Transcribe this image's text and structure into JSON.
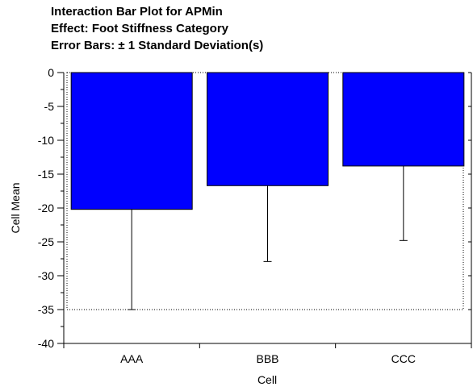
{
  "chart_data": {
    "type": "bar",
    "title_lines": [
      "Interaction Bar Plot for APMin",
      "Effect: Foot Stiffness Category",
      "Error Bars: ± 1 Standard Deviation(s)"
    ],
    "categories": [
      "AAA",
      "BBB",
      "CCC"
    ],
    "values": [
      -20.2,
      -16.7,
      -13.8
    ],
    "error_bars": {
      "type": "standard deviation",
      "multiplier": 1,
      "values": [
        14.8,
        11.2,
        11.0
      ]
    },
    "xlabel": "Cell",
    "ylabel": "Cell Mean",
    "ylim": [
      -40,
      0
    ],
    "yticks": [
      0,
      -5,
      -10,
      -15,
      -20,
      -25,
      -30,
      -35,
      -40
    ],
    "grid": false,
    "legend": "none",
    "colors": {
      "bar": "#0000ff",
      "bar_outline": "#000000",
      "error_bar": "#000000",
      "dotted_box": "#000000"
    }
  }
}
